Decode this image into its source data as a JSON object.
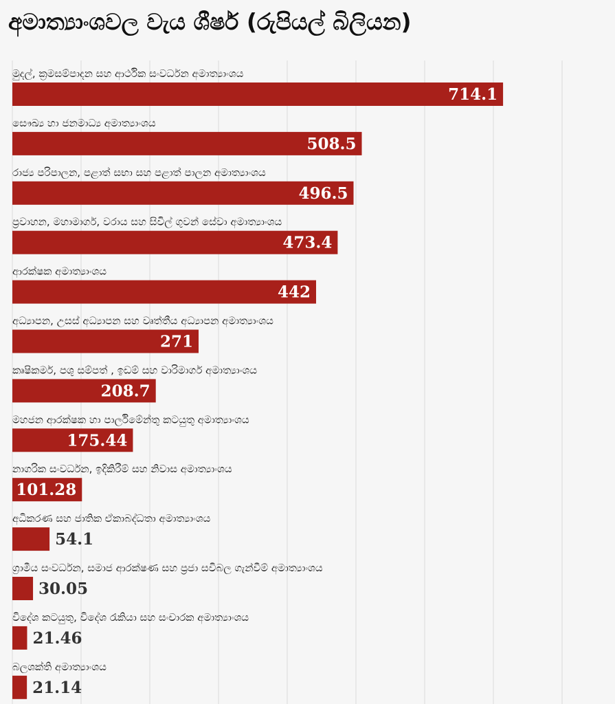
{
  "chart_data": {
    "type": "bar",
    "orientation": "horizontal",
    "title": "අමාත්‍යාංශවල වැය ශීර්ෂ (රුපියල් බිලියන)",
    "xlim": [
      0,
      840
    ],
    "grid": true,
    "bar_color": "#a8201a",
    "categories": [
      "මුදල්, ක්‍රමසම්පාදන සහ ආර්ථික සංවර්ධන අමාත්‍යාංශය",
      "සෞඛ්‍ය හා ජනමාධ්‍ය අමාත්‍යාංශය",
      "රාජ්‍ය පරිපාලන, පළාත් සභා සහ පළාත් පාලන අමාත්‍යාංශය",
      "ප්‍රවාහන, මහාමාර්ග, වරාය සහ සිවිල් ගුවන් සේවා අමාත්‍යාංශය",
      "ආරක්ෂක අමාත්‍යාංශය",
      "අධ්‍යාපන, උසස් අධ්‍යාපන සහ වෘත්තීය අධ්‍යාපන අමාත්‍යාංශය",
      "කෘෂිකර්ම, පශු සම්පත් , ඉඩම් සහ වාරිමාර්ග අමාත්‍යාංශය",
      "මහජන ආරක්ෂක හා පාර්ලිමේන්තු කටයුතු අමාත්‍යාංශය",
      "නාගරික සංවර්ධන, ඉදිකිරීම් සහ නිවාස අමාත්‍යාංශය",
      "අධිකරණ සහ ජාතික ඒකාබද්ධතා අමාත්‍යාංශය",
      "ග්‍රාමීය සංවර්ධන, සමාජ ආරක්ෂණ සහ ප්‍රජා සවිබල ගැන්වීම් අමාත්‍යාංශය",
      "විදේශ කටයුතු, විදේශ රැකියා සහ සංචාරක අමාත්‍යාංශය",
      "බලශක්ති අමාත්‍යාංශය"
    ],
    "values": [
      714.1,
      508.5,
      496.5,
      473.4,
      442,
      271,
      208.7,
      175.44,
      101.28,
      54.1,
      30.05,
      21.46,
      21.14
    ],
    "value_labels": [
      "714.1",
      "508.5",
      "496.5",
      "473.4",
      "442",
      "271",
      "208.7",
      "175.44",
      "101.28",
      "54.1",
      "30.05",
      "21.46",
      "21.14"
    ]
  }
}
